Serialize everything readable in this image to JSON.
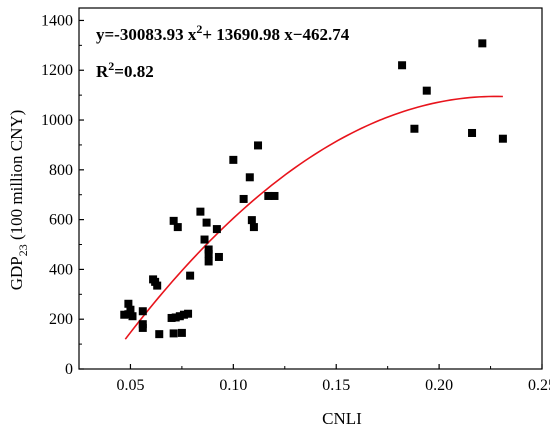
{
  "chart_data": {
    "type": "scatter",
    "xlabel": "CNLI",
    "ylabel": {
      "main": "GDP",
      "sub": "23",
      "unit": " (100 million CNY)"
    },
    "xlim": [
      0.025,
      0.25
    ],
    "ylim": [
      0,
      1450
    ],
    "xticks": [
      0.05,
      0.1,
      0.15,
      0.2,
      0.25
    ],
    "xtick_labels": [
      "0.05",
      "0.10",
      "0.15",
      "0.20",
      "0.25"
    ],
    "yticks": [
      0,
      200,
      400,
      600,
      800,
      1000,
      1200,
      1400
    ],
    "ytick_labels": [
      "0",
      "200",
      "400",
      "600",
      "800",
      "1000",
      "1200",
      "1400"
    ],
    "grid": false,
    "equation": {
      "prefix": "y=-30083.93 x",
      "sup": "2",
      "suffix": "+ 13690.98 x−462.74",
      "r2_prefix": "R",
      "r2_sup": "2",
      "r2_suffix": "=0.82"
    },
    "fit": {
      "a": -30083.93,
      "b": 13690.98,
      "c": -462.74,
      "x_range": [
        0.0475,
        0.231
      ],
      "color": "#e8141c"
    },
    "marker_color": "#000000",
    "points": [
      [
        0.047,
        218
      ],
      [
        0.049,
        220
      ],
      [
        0.049,
        262
      ],
      [
        0.05,
        238
      ],
      [
        0.051,
        212
      ],
      [
        0.056,
        232
      ],
      [
        0.056,
        180
      ],
      [
        0.056,
        165
      ],
      [
        0.061,
        360
      ],
      [
        0.062,
        350
      ],
      [
        0.063,
        335
      ],
      [
        0.064,
        140
      ],
      [
        0.07,
        205
      ],
      [
        0.071,
        143
      ],
      [
        0.071,
        595
      ],
      [
        0.072,
        207
      ],
      [
        0.073,
        570
      ],
      [
        0.074,
        212
      ],
      [
        0.075,
        145
      ],
      [
        0.076,
        218
      ],
      [
        0.078,
        222
      ],
      [
        0.079,
        375
      ],
      [
        0.084,
        632
      ],
      [
        0.086,
        520
      ],
      [
        0.087,
        588
      ],
      [
        0.088,
        480
      ],
      [
        0.088,
        462
      ],
      [
        0.088,
        432
      ],
      [
        0.092,
        562
      ],
      [
        0.093,
        450
      ],
      [
        0.1,
        840
      ],
      [
        0.105,
        683
      ],
      [
        0.108,
        770
      ],
      [
        0.109,
        598
      ],
      [
        0.11,
        570
      ],
      [
        0.112,
        898
      ],
      [
        0.117,
        695
      ],
      [
        0.12,
        695
      ],
      [
        0.182,
        1220
      ],
      [
        0.188,
        965
      ],
      [
        0.194,
        1118
      ],
      [
        0.216,
        948
      ],
      [
        0.221,
        1308
      ],
      [
        0.231,
        925
      ]
    ]
  }
}
